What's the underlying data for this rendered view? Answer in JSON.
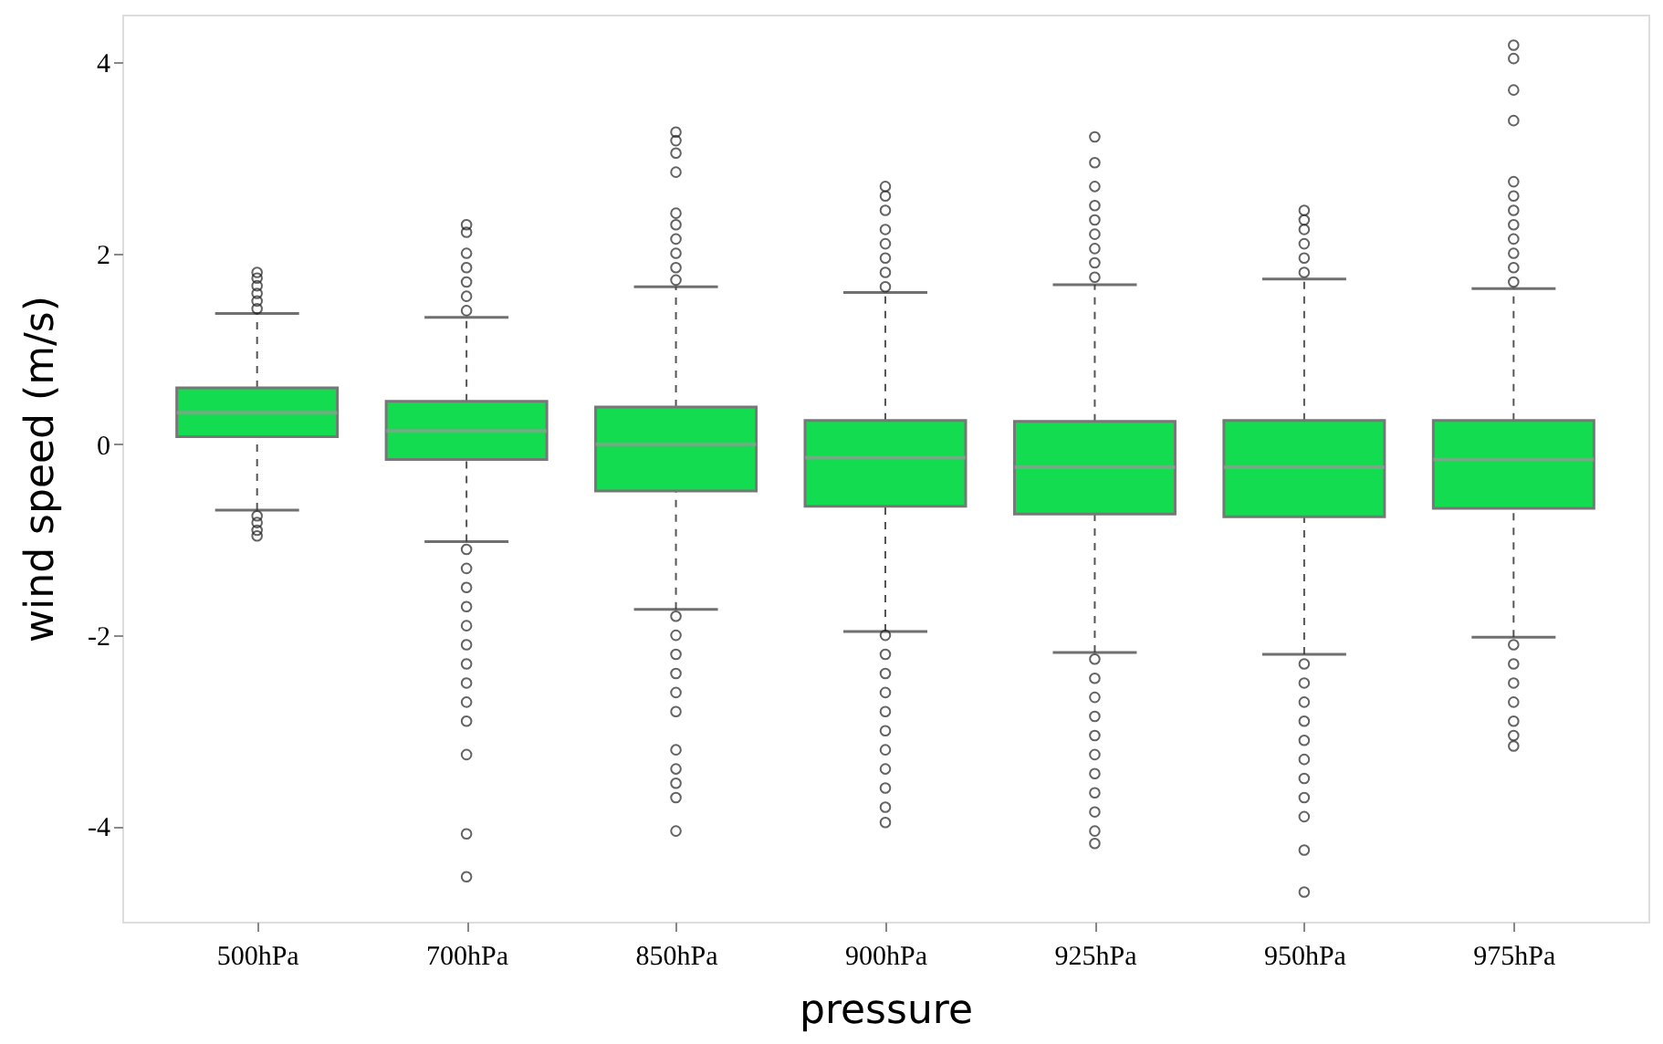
{
  "chart_data": {
    "type": "box",
    "xlabel": "pressure",
    "ylabel": "wind speed (m/s)",
    "categories": [
      "500hPa",
      "700hPa",
      "850hPa",
      "900hPa",
      "925hPa",
      "950hPa",
      "975hPa"
    ],
    "ylim": [
      -5.0,
      4.5
    ],
    "yticks": [
      -4,
      -2,
      0,
      2,
      4
    ],
    "grid": false,
    "series": [
      {
        "color": "#14dc50",
        "boxes": [
          {
            "low": -0.69,
            "q1": 0.08,
            "median": 0.33,
            "q3": 0.59,
            "high": 1.37,
            "outliers": [
              1.42,
              1.5,
              1.58,
              1.66,
              1.74,
              1.8,
              -0.75,
              -0.82,
              -0.9,
              -0.96
            ]
          },
          {
            "low": -1.02,
            "q1": -0.16,
            "median": 0.14,
            "q3": 0.45,
            "high": 1.33,
            "outliers": [
              1.4,
              1.55,
              1.7,
              1.85,
              2.0,
              2.22,
              2.3,
              -1.1,
              -1.3,
              -1.5,
              -1.7,
              -1.9,
              -2.1,
              -2.3,
              -2.5,
              -2.7,
              -2.9,
              -3.25,
              -4.08,
              -4.53
            ]
          },
          {
            "low": -1.73,
            "q1": -0.49,
            "median": 0.0,
            "q3": 0.39,
            "high": 1.65,
            "outliers": [
              1.72,
              1.85,
              2.0,
              2.15,
              2.3,
              2.42,
              2.85,
              3.05,
              3.18,
              3.27,
              -1.8,
              -2.0,
              -2.2,
              -2.4,
              -2.6,
              -2.8,
              -3.2,
              -3.4,
              -3.55,
              -3.7,
              -4.05
            ]
          },
          {
            "low": -1.96,
            "q1": -0.65,
            "median": -0.14,
            "q3": 0.25,
            "high": 1.59,
            "outliers": [
              1.65,
              1.8,
              1.95,
              2.1,
              2.25,
              2.45,
              2.6,
              2.7,
              -2.0,
              -2.2,
              -2.4,
              -2.6,
              -2.8,
              -3.0,
              -3.2,
              -3.4,
              -3.6,
              -3.8,
              -3.96
            ]
          },
          {
            "low": -2.18,
            "q1": -0.73,
            "median": -0.24,
            "q3": 0.24,
            "high": 1.67,
            "outliers": [
              1.75,
              1.9,
              2.05,
              2.2,
              2.35,
              2.5,
              2.7,
              2.95,
              3.22,
              -2.25,
              -2.45,
              -2.65,
              -2.85,
              -3.05,
              -3.25,
              -3.45,
              -3.65,
              -3.85,
              -4.05,
              -4.18
            ]
          },
          {
            "low": -2.2,
            "q1": -0.76,
            "median": -0.24,
            "q3": 0.25,
            "high": 1.73,
            "outliers": [
              1.8,
              1.95,
              2.1,
              2.25,
              2.35,
              2.45,
              -2.3,
              -2.5,
              -2.7,
              -2.9,
              -3.1,
              -3.3,
              -3.5,
              -3.7,
              -3.9,
              -4.25,
              -4.69
            ]
          },
          {
            "low": -2.02,
            "q1": -0.67,
            "median": -0.16,
            "q3": 0.25,
            "high": 1.63,
            "outliers": [
              1.7,
              1.85,
              2.0,
              2.15,
              2.3,
              2.45,
              2.6,
              2.75,
              3.39,
              3.71,
              4.04,
              4.18,
              -2.1,
              -2.3,
              -2.5,
              -2.7,
              -2.9,
              -3.05,
              -3.16
            ]
          }
        ]
      }
    ]
  }
}
